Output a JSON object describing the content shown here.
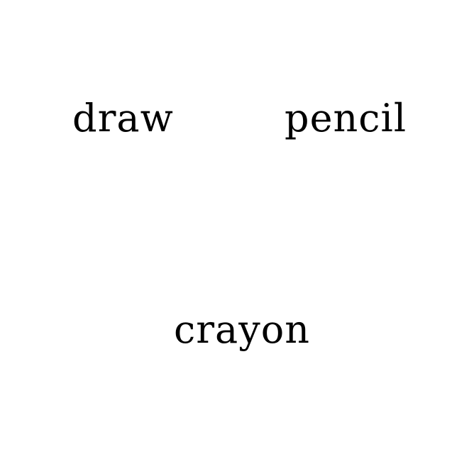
{
  "words": [
    {
      "text": "draw"
    },
    {
      "text": "pencil"
    },
    {
      "text": "crayon"
    }
  ],
  "colors": {
    "background": "#ffffff",
    "text": "#000000"
  }
}
